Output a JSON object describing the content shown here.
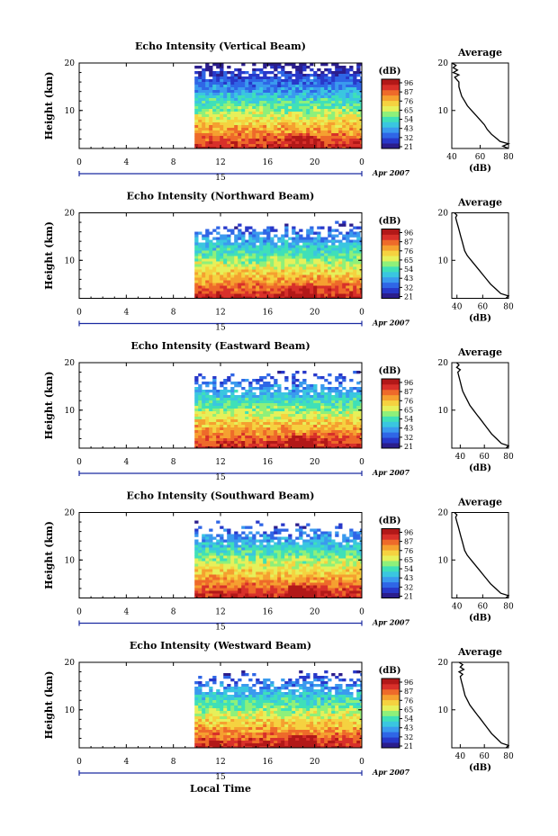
{
  "x_axis_label": "Local Time",
  "date_label": "Apr 2007",
  "day_label": "15",
  "colorbar_unit": "(dB)",
  "colorbar_ticks": [
    "96",
    "87",
    "76",
    "65",
    "54",
    "43",
    "32",
    "21"
  ],
  "colorbar_colors": [
    "#2b1d8c",
    "#2838c9",
    "#2f66e6",
    "#3a9aee",
    "#3ac6e0",
    "#3fe0b8",
    "#8ef07a",
    "#e6f05a",
    "#f5d240",
    "#f5a030",
    "#ee6a2a",
    "#d8302a",
    "#b21818"
  ],
  "chart_data": [
    {
      "type": "heatmap",
      "title": "Echo Intensity (Vertical Beam)",
      "ylabel": "Height (km)",
      "xlim": [
        0,
        24
      ],
      "ylim": [
        2,
        20
      ],
      "x_ticks": [
        "0",
        "4",
        "8",
        "12",
        "16",
        "20",
        "0"
      ],
      "y_ticks": [
        "20",
        "10"
      ],
      "data_start_hour": 9.8,
      "colorbar": {
        "unit": "(dB)",
        "range": [
          21,
          96
        ]
      },
      "profile": {
        "title": "Average",
        "xlabel": "(dB)",
        "xlim": [
          40,
          80
        ],
        "x_ticks": [
          "40",
          "60",
          "80"
        ],
        "y_ticks": [
          "20",
          "10"
        ],
        "height": [
          2,
          2.5,
          3,
          3.5,
          4,
          5,
          6,
          7,
          8,
          9,
          10,
          11,
          12,
          13,
          14,
          15,
          16,
          17,
          17.5,
          18,
          18.5,
          19,
          19.5,
          20
        ],
        "db": [
          80,
          76,
          80,
          74,
          72,
          68,
          65,
          63,
          60,
          57,
          54,
          51,
          49,
          47,
          46,
          45,
          45,
          42,
          45,
          41,
          44,
          41,
          43,
          40
        ]
      }
    },
    {
      "type": "heatmap",
      "title": "Echo Intensity (Northward Beam)",
      "ylabel": "Height (km)",
      "xlim": [
        0,
        24
      ],
      "ylim": [
        2,
        20
      ],
      "x_ticks": [
        "0",
        "4",
        "8",
        "12",
        "16",
        "20",
        "0"
      ],
      "y_ticks": [
        "20",
        "10"
      ],
      "data_start_hour": 9.8,
      "colorbar": {
        "unit": "(dB)",
        "range": [
          21,
          96
        ]
      },
      "profile": {
        "title": "Average",
        "xlabel": "(dB)",
        "xlim": [
          36,
          80
        ],
        "x_ticks": [
          "40",
          "60",
          "80"
        ],
        "y_ticks": [
          "20",
          "10"
        ],
        "height": [
          2,
          2.5,
          3,
          4,
          5,
          6,
          7,
          8,
          9,
          10,
          11,
          12,
          13,
          14,
          15,
          16,
          17,
          18,
          19,
          19.5,
          20
        ],
        "db": [
          78,
          80,
          74,
          70,
          66,
          63,
          60,
          57,
          54,
          51,
          48,
          46,
          45,
          44,
          43,
          42,
          41,
          40,
          39,
          40,
          38
        ]
      }
    },
    {
      "type": "heatmap",
      "title": "Echo Intensity (Eastward Beam)",
      "ylabel": "Height (km)",
      "xlim": [
        0,
        24
      ],
      "ylim": [
        2,
        20
      ],
      "x_ticks": [
        "0",
        "4",
        "8",
        "12",
        "16",
        "20",
        "0"
      ],
      "y_ticks": [
        "20",
        "10"
      ],
      "data_start_hour": 9.8,
      "colorbar": {
        "unit": "(dB)",
        "range": [
          21,
          96
        ]
      },
      "profile": {
        "title": "Average",
        "xlabel": "(dB)",
        "xlim": [
          33,
          80
        ],
        "x_ticks": [
          "40",
          "60",
          "80"
        ],
        "y_ticks": [
          "20",
          "10"
        ],
        "height": [
          2,
          2.5,
          3,
          4,
          5,
          6,
          7,
          8,
          9,
          10,
          11,
          12,
          13,
          14,
          15,
          16,
          17,
          18,
          18.5,
          19,
          19.5,
          20
        ],
        "db": [
          78,
          80,
          74,
          70,
          66,
          63,
          60,
          57,
          54,
          51,
          48,
          46,
          44,
          42,
          41,
          40,
          39,
          38,
          40,
          37,
          39,
          37
        ]
      }
    },
    {
      "type": "heatmap",
      "title": "Echo Intensity (Southward Beam)",
      "ylabel": "Height (km)",
      "xlim": [
        0,
        24
      ],
      "ylim": [
        2,
        20
      ],
      "x_ticks": [
        "0",
        "4",
        "8",
        "12",
        "16",
        "20",
        "0"
      ],
      "y_ticks": [
        "20",
        "10"
      ],
      "data_start_hour": 9.8,
      "colorbar": {
        "unit": "(dB)",
        "range": [
          21,
          96
        ]
      },
      "profile": {
        "title": "Average",
        "xlabel": "(dB)",
        "xlim": [
          36,
          80
        ],
        "x_ticks": [
          "40",
          "60",
          "80"
        ],
        "y_ticks": [
          "20",
          "10"
        ],
        "height": [
          2,
          2.5,
          3,
          4,
          5,
          6,
          7,
          8,
          9,
          10,
          11,
          12,
          13,
          14,
          15,
          16,
          17,
          18,
          19,
          19.5,
          20
        ],
        "db": [
          78,
          80,
          74,
          70,
          66,
          63,
          60,
          57,
          54,
          51,
          48,
          46,
          45,
          44,
          43,
          42,
          41,
          40,
          39,
          40,
          38
        ]
      }
    },
    {
      "type": "heatmap",
      "title": "Echo Intensity (Westward Beam)",
      "ylabel": "Height (km)",
      "xlim": [
        0,
        24
      ],
      "ylim": [
        2,
        20
      ],
      "x_ticks": [
        "0",
        "4",
        "8",
        "12",
        "16",
        "20",
        "0"
      ],
      "y_ticks": [
        "20",
        "10"
      ],
      "data_start_hour": 9.8,
      "colorbar": {
        "unit": "(dB)",
        "range": [
          21,
          96
        ]
      },
      "profile": {
        "title": "Average",
        "xlabel": "(dB)",
        "xlim": [
          33,
          80
        ],
        "x_ticks": [
          "40",
          "60",
          "80"
        ],
        "y_ticks": [
          "20",
          "10"
        ],
        "height": [
          2,
          2.5,
          3,
          4,
          5,
          6,
          7,
          8,
          9,
          10,
          11,
          12,
          13,
          14,
          15,
          16,
          17,
          17.5,
          18,
          18.5,
          19,
          19.5,
          20
        ],
        "db": [
          78,
          80,
          74,
          70,
          66,
          63,
          60,
          57,
          54,
          51,
          48,
          46,
          44,
          43,
          42,
          41,
          40,
          42,
          39,
          43,
          40,
          42,
          39
        ]
      }
    }
  ]
}
